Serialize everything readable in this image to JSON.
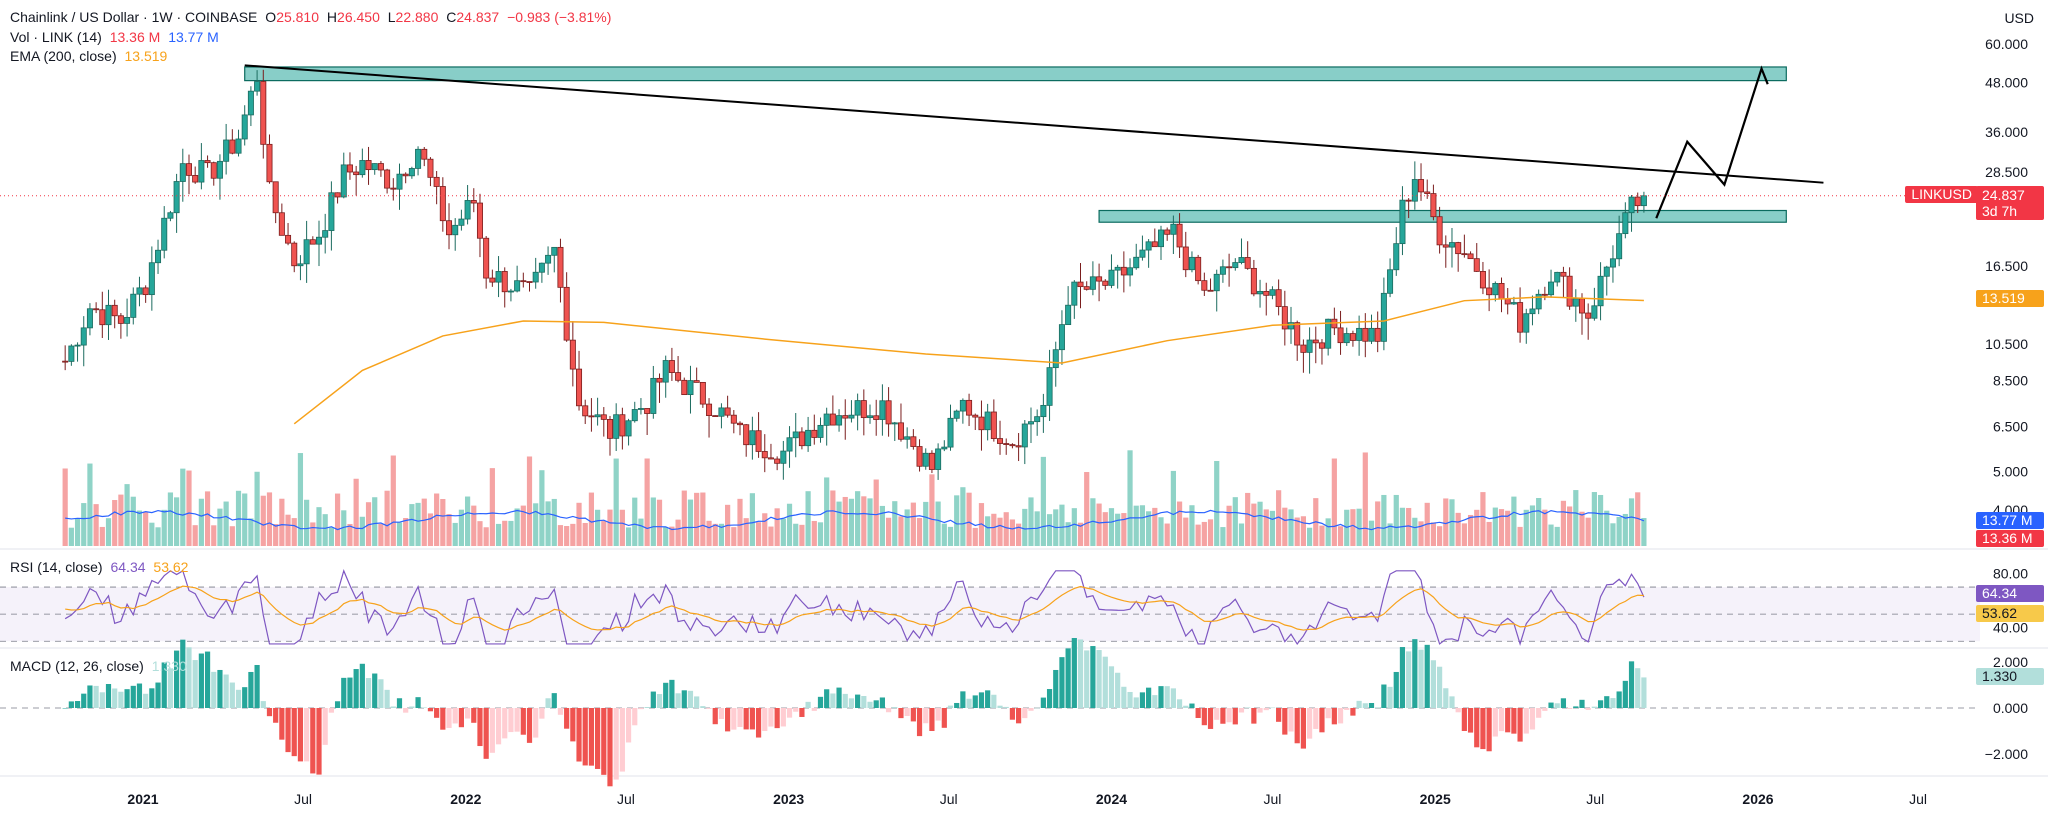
{
  "header": {
    "symbol": "Chainlink / US Dollar · 1W · COINBASE",
    "o_label": "O",
    "o": "25.810",
    "h_label": "H",
    "h": "26.450",
    "l_label": "L",
    "l": "22.880",
    "c_label": "C",
    "c": "24.837",
    "chg": "−0.983 (−3.81%)",
    "vol_label": "Vol · LINK (14)",
    "vol_val": "13.36 M",
    "vol_ma": "13.77 M",
    "ema_label": "EMA (200, close)",
    "ema_val": "13.519"
  },
  "currency": "USD",
  "price_tag": {
    "symbol": "LINKUSD",
    "value": "24.837",
    "countdown": "3d 7h"
  },
  "ema_tag": "13.519",
  "vol_tags": {
    "ma": "13.77 M",
    "vol": "13.36 M"
  },
  "rsi": {
    "label": "RSI (14, close)",
    "value": "64.34",
    "ma": "53.62",
    "tag_value": "64.34",
    "tag_ma": "53.62"
  },
  "macd": {
    "label": "MACD (12, 26, close)",
    "value": "1.330",
    "tag": "1.330"
  },
  "colors": {
    "up": "#26a69a",
    "down": "#ef5350",
    "ema": "#f7a21b",
    "zone": "#26a69a",
    "line": "#000000",
    "vol_ma": "#2962ff",
    "rsi": "#7e57c2",
    "rsi_ma": "#f7a21b"
  },
  "chart_data": [
    {
      "type": "candlestick",
      "title": "Chainlink / US Dollar · 1W · COINBASE",
      "scale": "log",
      "y_ticks": [
        60,
        48,
        36,
        28.5,
        22.5,
        16.5,
        13.5,
        10.5,
        8.5,
        6.5,
        5.0,
        4.0
      ],
      "y_tick_labels": [
        "60.000",
        "48.000",
        "36.000",
        "28.500",
        "",
        "16.500",
        "",
        "10.500",
        "8.500",
        "6.500",
        "5.000",
        "4.000"
      ],
      "x_labels": [
        "2021",
        "Jul",
        "2022",
        "Jul",
        "2023",
        "Jul",
        "2024",
        "Jul",
        "2025",
        "Jul",
        "2026",
        "Jul"
      ],
      "x_label_dates": [
        "2021-01-01",
        "2021-07-01",
        "2022-01-01",
        "2022-07-01",
        "2023-01-01",
        "2023-07-01",
        "2024-01-01",
        "2024-07-01",
        "2025-01-01",
        "2025-07-01",
        "2026-01-01",
        "2026-07-01"
      ],
      "last_close": 24.837,
      "price_path": [
        [
          "2020-10-05",
          9.5
        ],
        [
          "2020-11-02",
          13
        ],
        [
          "2020-12-07",
          12
        ],
        [
          "2021-01-04",
          15
        ],
        [
          "2021-02-15",
          30
        ],
        [
          "2021-03-15",
          28
        ],
        [
          "2021-04-19",
          35
        ],
        [
          "2021-05-10",
          50
        ],
        [
          "2021-05-24",
          25
        ],
        [
          "2021-06-21",
          17
        ],
        [
          "2021-07-19",
          20
        ],
        [
          "2021-08-16",
          28
        ],
        [
          "2021-09-06",
          30
        ],
        [
          "2021-10-11",
          27
        ],
        [
          "2021-11-08",
          33
        ],
        [
          "2021-12-13",
          20
        ],
        [
          "2022-01-10",
          24
        ],
        [
          "2022-01-24",
          16
        ],
        [
          "2022-03-14",
          14
        ],
        [
          "2022-04-11",
          18
        ],
        [
          "2022-05-09",
          7.5
        ],
        [
          "2022-06-13",
          6.3
        ],
        [
          "2022-07-25",
          7.5
        ],
        [
          "2022-08-15",
          9
        ],
        [
          "2022-10-10",
          7.3
        ],
        [
          "2022-11-07",
          6.2
        ],
        [
          "2022-12-26",
          5.6
        ],
        [
          "2023-02-13",
          7.0
        ],
        [
          "2023-04-17",
          7.4
        ],
        [
          "2023-06-12",
          5.1
        ],
        [
          "2023-07-17",
          7.4
        ],
        [
          "2023-09-11",
          6.0
        ],
        [
          "2023-10-16",
          7.3
        ],
        [
          "2023-11-13",
          14
        ],
        [
          "2024-01-01",
          15
        ],
        [
          "2024-03-11",
          20
        ],
        [
          "2024-04-15",
          14
        ],
        [
          "2024-05-20",
          17
        ],
        [
          "2024-06-24",
          14
        ],
        [
          "2024-08-05",
          10.5
        ],
        [
          "2024-09-09",
          11.5
        ],
        [
          "2024-10-28",
          11
        ],
        [
          "2024-11-25",
          23
        ],
        [
          "2024-12-09",
          28
        ],
        [
          "2025-01-06",
          20
        ],
        [
          "2025-02-03",
          18
        ],
        [
          "2025-04-07",
          12
        ],
        [
          "2025-05-12",
          16
        ],
        [
          "2025-06-23",
          12.5
        ],
        [
          "2025-07-21",
          18
        ],
        [
          "2025-08-11",
          23
        ],
        [
          "2025-08-25",
          24.837
        ]
      ],
      "ema200": [
        [
          "2021-06-21",
          6.6
        ],
        [
          "2021-09-06",
          9.0
        ],
        [
          "2021-12-06",
          11.0
        ],
        [
          "2022-03-07",
          12.0
        ],
        [
          "2022-06-06",
          11.9
        ],
        [
          "2022-12-05",
          10.8
        ],
        [
          "2023-06-05",
          9.9
        ],
        [
          "2023-11-06",
          9.4
        ],
        [
          "2024-03-04",
          10.7
        ],
        [
          "2024-07-01",
          11.7
        ],
        [
          "2024-11-04",
          12.0
        ],
        [
          "2025-02-03",
          13.5
        ],
        [
          "2025-05-05",
          13.8
        ],
        [
          "2025-08-25",
          13.519
        ]
      ],
      "zones": [
        {
          "from": "2021-04-26",
          "to": "2026-02-02",
          "low": 48.5,
          "high": 52.5
        },
        {
          "from": "2023-12-18",
          "to": "2026-02-02",
          "low": 21.3,
          "high": 22.8
        }
      ],
      "trendline": [
        [
          "2021-04-26",
          53
        ],
        [
          "2026-03-16",
          26.8
        ]
      ],
      "projection": [
        [
          "2025-09-08",
          21.8
        ],
        [
          "2025-10-13",
          34
        ],
        [
          "2025-11-24",
          26.5
        ],
        [
          "2026-01-05",
          52
        ],
        [
          "2026-01-12",
          47.5
        ]
      ],
      "arrowhead": [
        [
          "2025-12-29",
          45.5
        ],
        [
          "2026-01-05",
          52
        ],
        [
          "2026-01-12",
          47.5
        ]
      ]
    },
    {
      "type": "bar",
      "title": "Vol · LINK (14)",
      "last_value": 13.36,
      "ma_value": 13.77,
      "unit": "M"
    },
    {
      "type": "line",
      "title": "RSI (14, close)",
      "y_ticks": [
        80,
        40
      ],
      "y_tick_labels": [
        "80.00",
        "40.00"
      ],
      "bands": [
        70,
        50,
        30
      ],
      "last_value": 64.34,
      "ma_last_value": 53.62
    },
    {
      "type": "bar",
      "title": "MACD (12, 26, close)",
      "y_ticks": [
        2,
        0,
        -2
      ],
      "y_tick_labels": [
        "2.000",
        "0.000",
        "−2.000"
      ],
      "last_value": 1.33
    }
  ]
}
